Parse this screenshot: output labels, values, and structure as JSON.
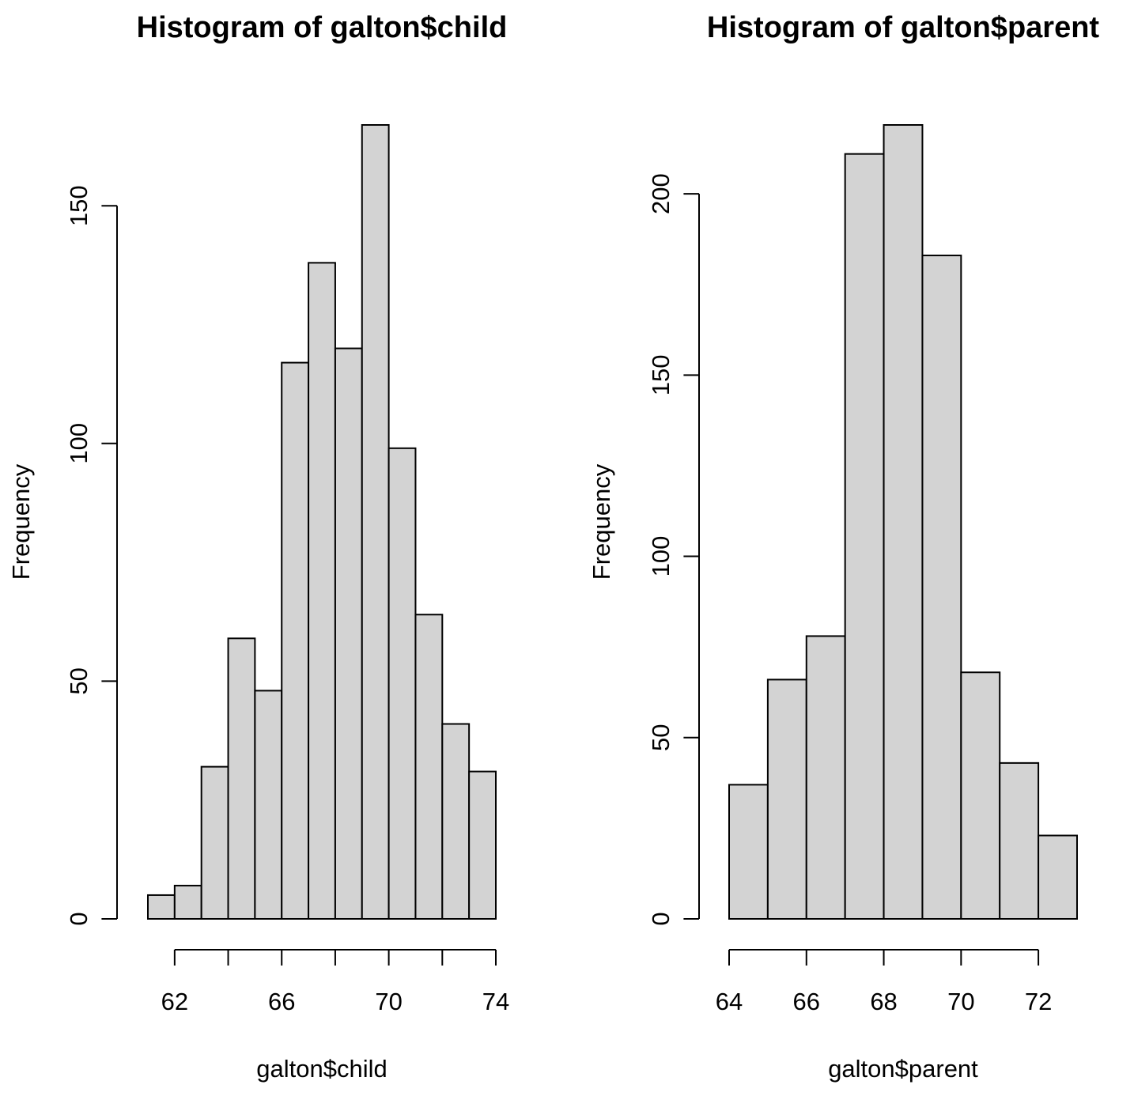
{
  "chart_data": [
    {
      "type": "bar",
      "title": "Histogram of galton$child",
      "xlabel": "galton$child",
      "ylabel": "Frequency",
      "bin_edges": [
        61,
        62,
        63,
        64,
        65,
        66,
        67,
        68,
        69,
        70,
        71,
        72,
        73,
        74
      ],
      "values": [
        5,
        7,
        32,
        59,
        48,
        117,
        138,
        120,
        167,
        99,
        64,
        41,
        31
      ],
      "xticks": [
        62,
        66,
        70,
        74
      ],
      "yticks": [
        0,
        50,
        100,
        150
      ],
      "xlim": [
        61,
        74
      ],
      "ylim": [
        0,
        167
      ],
      "bar_color": "#d3d3d3",
      "grid": false
    },
    {
      "type": "bar",
      "title": "Histogram of galton$parent",
      "xlabel": "galton$parent",
      "ylabel": "Frequency",
      "bin_edges": [
        64,
        65,
        66,
        67,
        68,
        69,
        70,
        71,
        72,
        73
      ],
      "values": [
        37,
        66,
        78,
        211,
        219,
        183,
        68,
        43,
        23
      ],
      "xticks": [
        64,
        66,
        68,
        70,
        72
      ],
      "yticks": [
        0,
        50,
        100,
        150,
        200
      ],
      "xlim": [
        64,
        73
      ],
      "ylim": [
        0,
        219
      ],
      "bar_color": "#d3d3d3",
      "grid": false
    }
  ]
}
